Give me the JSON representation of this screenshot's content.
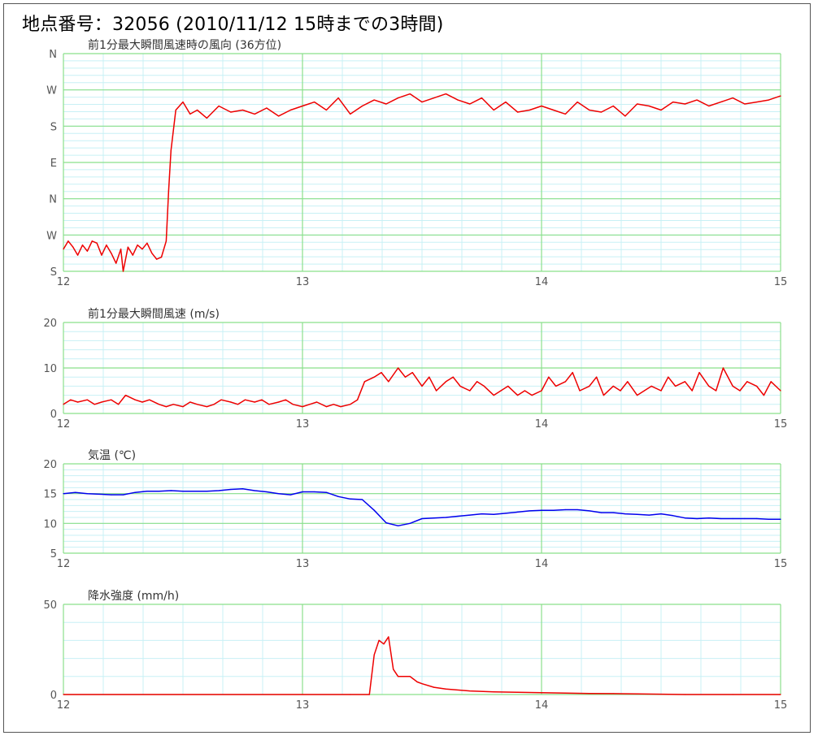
{
  "page": {
    "title": "地点番号：32056 (2010/11/12 15時までの3時間)"
  },
  "colors": {
    "grid_major": "#8be08b",
    "grid_minor": "#c8f0f5",
    "wind_series": "#ee0000",
    "temperature_series": "#0000ee",
    "precip_series": "#ee0000",
    "precip_fill_level": "#ccaa00"
  },
  "chart_data": [
    {
      "type": "line",
      "title": "前1分最大瞬間風速時の風向 (36方位)",
      "xlim": [
        12,
        15
      ],
      "x_ticks": [
        "12",
        "13",
        "14",
        "15"
      ],
      "y_ticks": [
        "S",
        "W",
        "N",
        "E",
        "S",
        "W",
        "N"
      ],
      "ylim": [
        0,
        108
      ],
      "grid": true,
      "series": [
        {
          "x": [
            12.0,
            12.02,
            12.04,
            12.06,
            12.08,
            12.1,
            12.12,
            12.14,
            12.16,
            12.18,
            12.2,
            12.22,
            12.24,
            12.25,
            12.27,
            12.29,
            12.31,
            12.33,
            12.35,
            12.37,
            12.39,
            12.41,
            12.43,
            12.44,
            12.45,
            12.47,
            12.5,
            12.53,
            12.56,
            12.6,
            12.65,
            12.7,
            12.75,
            12.8,
            12.85,
            12.9,
            12.95,
            13.0,
            13.05,
            13.1,
            13.15,
            13.2,
            13.25,
            13.3,
            13.35,
            13.4,
            13.45,
            13.5,
            13.55,
            13.6,
            13.65,
            13.7,
            13.75,
            13.8,
            13.85,
            13.9,
            13.95,
            14.0,
            14.05,
            14.1,
            14.15,
            14.2,
            14.25,
            14.3,
            14.35,
            14.4,
            14.45,
            14.5,
            14.55,
            14.6,
            14.65,
            14.7,
            14.75,
            14.8,
            14.85,
            14.9,
            14.95,
            15.0
          ],
          "y": [
            11,
            15,
            12,
            8,
            13,
            10,
            15,
            14,
            8,
            13,
            9,
            4,
            11,
            0,
            12,
            8,
            13,
            11,
            14,
            9,
            6,
            7,
            15,
            40,
            60,
            80,
            84,
            78,
            80,
            76,
            82,
            79,
            80,
            78,
            81,
            77,
            80,
            82,
            84,
            80,
            86,
            78,
            82,
            85,
            83,
            86,
            88,
            84,
            86,
            88,
            85,
            83,
            86,
            80,
            84,
            79,
            80,
            82,
            80,
            78,
            84,
            80,
            79,
            82,
            77,
            83,
            82,
            80,
            84,
            83,
            85,
            82,
            84,
            86,
            83,
            84,
            85,
            87
          ]
        }
      ]
    },
    {
      "type": "line",
      "title": "前1分最大瞬間風速 (m/s)",
      "xlim": [
        12,
        15
      ],
      "x_ticks": [
        "12",
        "13",
        "14",
        "15"
      ],
      "ylim": [
        0,
        20
      ],
      "y_ticks": [
        "0",
        "10",
        "20"
      ],
      "grid": true,
      "series": [
        {
          "x": [
            12.0,
            12.03,
            12.06,
            12.1,
            12.13,
            12.16,
            12.2,
            12.23,
            12.26,
            12.3,
            12.33,
            12.36,
            12.4,
            12.43,
            12.46,
            12.5,
            12.53,
            12.56,
            12.6,
            12.63,
            12.66,
            12.7,
            12.73,
            12.76,
            12.8,
            12.83,
            12.86,
            12.9,
            12.93,
            12.96,
            13.0,
            13.03,
            13.06,
            13.1,
            13.13,
            13.16,
            13.2,
            13.23,
            13.26,
            13.3,
            13.33,
            13.36,
            13.4,
            13.43,
            13.46,
            13.5,
            13.53,
            13.56,
            13.6,
            13.63,
            13.66,
            13.7,
            13.73,
            13.76,
            13.8,
            13.83,
            13.86,
            13.9,
            13.93,
            13.96,
            14.0,
            14.03,
            14.06,
            14.1,
            14.13,
            14.16,
            14.2,
            14.23,
            14.26,
            14.3,
            14.33,
            14.36,
            14.4,
            14.43,
            14.46,
            14.5,
            14.53,
            14.56,
            14.6,
            14.63,
            14.66,
            14.7,
            14.73,
            14.76,
            14.8,
            14.83,
            14.86,
            14.9,
            14.93,
            14.96,
            15.0
          ],
          "y": [
            2,
            3,
            2.5,
            3,
            2,
            2.5,
            3,
            2,
            4,
            3,
            2.5,
            3,
            2,
            1.5,
            2,
            1.5,
            2.5,
            2,
            1.5,
            2,
            3,
            2.5,
            2,
            3,
            2.5,
            3,
            2,
            2.5,
            3,
            2,
            1.5,
            2,
            2.5,
            1.5,
            2,
            1.5,
            2,
            3,
            7,
            8,
            9,
            7,
            10,
            8,
            9,
            6,
            8,
            5,
            7,
            8,
            6,
            5,
            7,
            6,
            4,
            5,
            6,
            4,
            5,
            4,
            5,
            8,
            6,
            7,
            9,
            5,
            6,
            8,
            4,
            6,
            5,
            7,
            4,
            5,
            6,
            5,
            8,
            6,
            7,
            5,
            9,
            6,
            5,
            10,
            6,
            5,
            7,
            6,
            4,
            7,
            5
          ]
        }
      ]
    },
    {
      "type": "line",
      "title": "気温 (℃)",
      "xlim": [
        12,
        15
      ],
      "x_ticks": [
        "12",
        "13",
        "14",
        "15"
      ],
      "ylim": [
        5,
        20
      ],
      "y_ticks": [
        "5",
        "10",
        "15",
        "20"
      ],
      "grid": true,
      "series": [
        {
          "x": [
            12.0,
            12.05,
            12.1,
            12.15,
            12.2,
            12.25,
            12.3,
            12.35,
            12.4,
            12.45,
            12.5,
            12.55,
            12.6,
            12.65,
            12.7,
            12.75,
            12.8,
            12.85,
            12.9,
            12.95,
            13.0,
            13.05,
            13.1,
            13.15,
            13.2,
            13.25,
            13.3,
            13.35,
            13.4,
            13.45,
            13.5,
            13.55,
            13.6,
            13.65,
            13.7,
            13.75,
            13.8,
            13.85,
            13.9,
            13.95,
            14.0,
            14.05,
            14.1,
            14.15,
            14.2,
            14.25,
            14.3,
            14.35,
            14.4,
            14.45,
            14.5,
            14.55,
            14.6,
            14.65,
            14.7,
            14.75,
            14.8,
            14.85,
            14.9,
            14.95,
            15.0
          ],
          "y": [
            15,
            15.2,
            15,
            14.9,
            14.8,
            14.8,
            15.2,
            15.4,
            15.4,
            15.5,
            15.4,
            15.4,
            15.4,
            15.5,
            15.7,
            15.8,
            15.5,
            15.3,
            15,
            14.8,
            15.3,
            15.3,
            15.2,
            14.5,
            14.1,
            14.0,
            12.2,
            10.1,
            9.6,
            10.0,
            10.8,
            10.9,
            11.0,
            11.2,
            11.4,
            11.6,
            11.5,
            11.7,
            11.9,
            12.1,
            12.2,
            12.2,
            12.3,
            12.3,
            12.1,
            11.8,
            11.8,
            11.6,
            11.5,
            11.4,
            11.6,
            11.3,
            10.9,
            10.8,
            10.9,
            10.8,
            10.8,
            10.8,
            10.8,
            10.7,
            10.7
          ]
        }
      ]
    },
    {
      "type": "line",
      "title": "降水強度 (mm/h)",
      "xlim": [
        12,
        15
      ],
      "x_ticks": [
        "12",
        "13",
        "14",
        "15"
      ],
      "ylim": [
        0,
        50
      ],
      "y_ticks": [
        "0",
        "50"
      ],
      "grid": true,
      "series": [
        {
          "x": [
            12.0,
            13.0,
            13.2,
            13.28,
            13.3,
            13.32,
            13.34,
            13.36,
            13.38,
            13.4,
            13.42,
            13.45,
            13.48,
            13.5,
            13.55,
            13.6,
            13.7,
            13.8,
            13.9,
            14.0,
            14.1,
            14.2,
            14.3,
            14.4,
            14.5,
            14.6,
            14.8,
            15.0
          ],
          "y": [
            0,
            0,
            0,
            0,
            22,
            30,
            28,
            32,
            14,
            10,
            10,
            10,
            7,
            6,
            4,
            3,
            2,
            1.5,
            1.2,
            1,
            0.8,
            0.6,
            0.5,
            0.3,
            0.2,
            0,
            0,
            0
          ]
        }
      ]
    }
  ]
}
